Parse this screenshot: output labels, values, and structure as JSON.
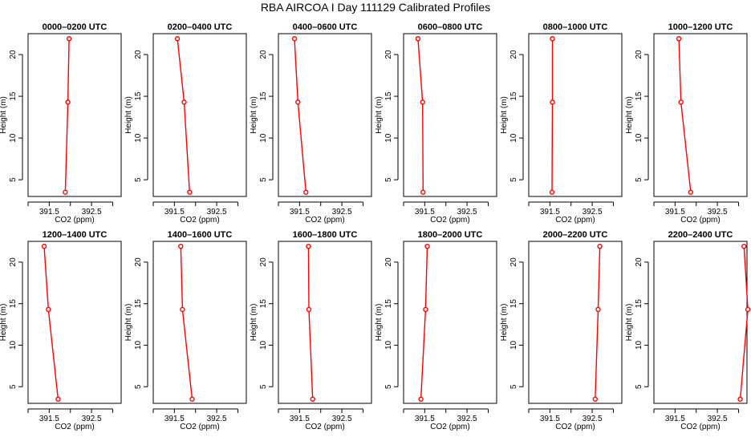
{
  "figure": {
    "title": "RBA AIRCOA I  Day 111129  Calibrated Profiles"
  },
  "style": {
    "series_color": "#ff0000",
    "axis_color": "#000000",
    "marker": "open-circle"
  },
  "chart_data": [
    {
      "type": "line",
      "title": "0000–0200 UTC",
      "xlabel": "CO2 (ppm)",
      "ylabel": "Height (m)",
      "xlim": [
        391.0,
        393.2
      ],
      "ylim": [
        3,
        22.5
      ],
      "xticks": [
        "391.5",
        "392.5"
      ],
      "xtick_values": [
        391.5,
        392.5
      ],
      "xtick_minor": [
        391.0,
        392.0,
        393.0
      ],
      "yticks": [
        "5",
        "10",
        "15",
        "20"
      ],
      "ytick_values": [
        5,
        10,
        15,
        20
      ],
      "series": [
        {
          "x": [
            391.88,
            391.94,
            391.97
          ],
          "y": [
            3.5,
            14.3,
            21.9
          ]
        }
      ]
    },
    {
      "type": "line",
      "title": "0200–0400 UTC",
      "xlabel": "CO2 (ppm)",
      "ylabel": "Height (m)",
      "xlim": [
        391.0,
        393.2
      ],
      "ylim": [
        3,
        22.5
      ],
      "xticks": [
        "391.5",
        "392.5"
      ],
      "xtick_values": [
        391.5,
        392.5
      ],
      "xtick_minor": [
        391.0,
        392.0,
        393.0
      ],
      "yticks": [
        "5",
        "10",
        "15",
        "20"
      ],
      "ytick_values": [
        5,
        10,
        15,
        20
      ],
      "series": [
        {
          "x": [
            391.86,
            391.73,
            391.57
          ],
          "y": [
            3.5,
            14.3,
            21.9
          ]
        }
      ]
    },
    {
      "type": "line",
      "title": "0400–0600 UTC",
      "xlabel": "CO2 (ppm)",
      "ylabel": "Height (m)",
      "xlim": [
        391.0,
        393.2
      ],
      "ylim": [
        3,
        22.5
      ],
      "xticks": [
        "391.5",
        "392.5"
      ],
      "xtick_values": [
        391.5,
        392.5
      ],
      "xtick_minor": [
        391.0,
        392.0,
        393.0
      ],
      "yticks": [
        "5",
        "10",
        "15",
        "20"
      ],
      "ytick_values": [
        5,
        10,
        15,
        20
      ],
      "series": [
        {
          "x": [
            391.65,
            391.46,
            391.38
          ],
          "y": [
            3.5,
            14.3,
            21.9
          ]
        }
      ]
    },
    {
      "type": "line",
      "title": "0600–0800 UTC",
      "xlabel": "CO2 (ppm)",
      "ylabel": "Height (m)",
      "xlim": [
        391.0,
        393.2
      ],
      "ylim": [
        3,
        22.5
      ],
      "xticks": [
        "391.5",
        "392.5"
      ],
      "xtick_values": [
        391.5,
        392.5
      ],
      "xtick_minor": [
        391.0,
        392.0,
        393.0
      ],
      "yticks": [
        "5",
        "10",
        "15",
        "20"
      ],
      "ytick_values": [
        5,
        10,
        15,
        20
      ],
      "series": [
        {
          "x": [
            391.46,
            391.45,
            391.34
          ],
          "y": [
            3.5,
            14.3,
            21.9
          ]
        }
      ]
    },
    {
      "type": "line",
      "title": "0800–1000 UTC",
      "xlabel": "CO2 (ppm)",
      "ylabel": "Height (m)",
      "xlim": [
        391.0,
        393.2
      ],
      "ylim": [
        3,
        22.5
      ],
      "xticks": [
        "391.5",
        "392.5"
      ],
      "xtick_values": [
        391.5,
        392.5
      ],
      "xtick_minor": [
        391.0,
        392.0,
        393.0
      ],
      "yticks": [
        "5",
        "10",
        "15",
        "20"
      ],
      "ytick_values": [
        5,
        10,
        15,
        20
      ],
      "series": [
        {
          "x": [
            391.55,
            391.56,
            391.56
          ],
          "y": [
            3.5,
            14.3,
            21.9
          ]
        }
      ]
    },
    {
      "type": "line",
      "title": "1000–1200 UTC",
      "xlabel": "CO2 (ppm)",
      "ylabel": "Height (m)",
      "xlim": [
        391.0,
        393.2
      ],
      "ylim": [
        3,
        22.5
      ],
      "xticks": [
        "391.5",
        "392.5"
      ],
      "xtick_values": [
        391.5,
        392.5
      ],
      "xtick_minor": [
        391.0,
        392.0,
        393.0
      ],
      "yticks": [
        "5",
        "10",
        "15",
        "20"
      ],
      "ytick_values": [
        5,
        10,
        15,
        20
      ],
      "series": [
        {
          "x": [
            391.87,
            391.64,
            391.59
          ],
          "y": [
            3.5,
            14.3,
            21.9
          ]
        }
      ]
    },
    {
      "type": "line",
      "title": "1200–1400 UTC",
      "xlabel": "CO2 (ppm)",
      "ylabel": "Height (m)",
      "xlim": [
        391.0,
        393.2
      ],
      "ylim": [
        3,
        22.5
      ],
      "xticks": [
        "391.5",
        "392.5"
      ],
      "xtick_values": [
        391.5,
        392.5
      ],
      "xtick_minor": [
        391.0,
        392.0,
        393.0
      ],
      "yticks": [
        "5",
        "10",
        "15",
        "20"
      ],
      "ytick_values": [
        5,
        10,
        15,
        20
      ],
      "series": [
        {
          "x": [
            391.71,
            391.48,
            391.38
          ],
          "y": [
            3.5,
            14.3,
            21.9
          ]
        }
      ]
    },
    {
      "type": "line",
      "title": "1400–1600 UTC",
      "xlabel": "CO2 (ppm)",
      "ylabel": "Height (m)",
      "xlim": [
        391.0,
        393.2
      ],
      "ylim": [
        3,
        22.5
      ],
      "xticks": [
        "391.5",
        "392.5"
      ],
      "xtick_values": [
        391.5,
        392.5
      ],
      "xtick_minor": [
        391.0,
        392.0,
        393.0
      ],
      "yticks": [
        "5",
        "10",
        "15",
        "20"
      ],
      "ytick_values": [
        5,
        10,
        15,
        20
      ],
      "series": [
        {
          "x": [
            391.92,
            391.69,
            391.65
          ],
          "y": [
            3.5,
            14.3,
            21.9
          ]
        }
      ]
    },
    {
      "type": "line",
      "title": "1600–1800 UTC",
      "xlabel": "CO2 (ppm)",
      "ylabel": "Height (m)",
      "xlim": [
        391.0,
        393.2
      ],
      "ylim": [
        3,
        22.5
      ],
      "xticks": [
        "391.5",
        "392.5"
      ],
      "xtick_values": [
        391.5,
        392.5
      ],
      "xtick_minor": [
        391.0,
        392.0,
        393.0
      ],
      "yticks": [
        "5",
        "10",
        "15",
        "20"
      ],
      "ytick_values": [
        5,
        10,
        15,
        20
      ],
      "series": [
        {
          "x": [
            391.81,
            391.72,
            391.71
          ],
          "y": [
            3.5,
            14.3,
            21.9
          ]
        }
      ]
    },
    {
      "type": "line",
      "title": "1800–2000 UTC",
      "xlabel": "CO2 (ppm)",
      "ylabel": "Height (m)",
      "xlim": [
        391.0,
        393.2
      ],
      "ylim": [
        3,
        22.5
      ],
      "xticks": [
        "391.5",
        "392.5"
      ],
      "xtick_values": [
        391.5,
        392.5
      ],
      "xtick_minor": [
        391.0,
        392.0,
        393.0
      ],
      "yticks": [
        "5",
        "10",
        "15",
        "20"
      ],
      "ytick_values": [
        5,
        10,
        15,
        20
      ],
      "series": [
        {
          "x": [
            391.41,
            391.52,
            391.56
          ],
          "y": [
            3.5,
            14.3,
            21.9
          ]
        }
      ]
    },
    {
      "type": "line",
      "title": "2000–2200 UTC",
      "xlabel": "CO2 (ppm)",
      "ylabel": "Height (m)",
      "xlim": [
        391.0,
        393.2
      ],
      "ylim": [
        3,
        22.5
      ],
      "xticks": [
        "391.5",
        "392.5"
      ],
      "xtick_values": [
        391.5,
        392.5
      ],
      "xtick_minor": [
        391.0,
        392.0,
        393.0
      ],
      "yticks": [
        "5",
        "10",
        "15",
        "20"
      ],
      "ytick_values": [
        5,
        10,
        15,
        20
      ],
      "series": [
        {
          "x": [
            392.57,
            392.64,
            392.68
          ],
          "y": [
            3.5,
            14.3,
            21.9
          ]
        }
      ]
    },
    {
      "type": "line",
      "title": "2200–2400 UTC",
      "xlabel": "CO2 (ppm)",
      "ylabel": "Height (m)",
      "xlim": [
        391.0,
        393.2
      ],
      "ylim": [
        3,
        22.5
      ],
      "xticks": [
        "391.5",
        "392.5"
      ],
      "xtick_values": [
        391.5,
        392.5
      ],
      "xtick_minor": [
        391.0,
        392.0,
        393.0
      ],
      "yticks": [
        "5",
        "10",
        "15",
        "20"
      ],
      "ytick_values": [
        5,
        10,
        15,
        20
      ],
      "series": [
        {
          "x": [
            393.04,
            393.22,
            393.13
          ],
          "y": [
            3.5,
            14.3,
            21.9
          ]
        }
      ]
    }
  ]
}
